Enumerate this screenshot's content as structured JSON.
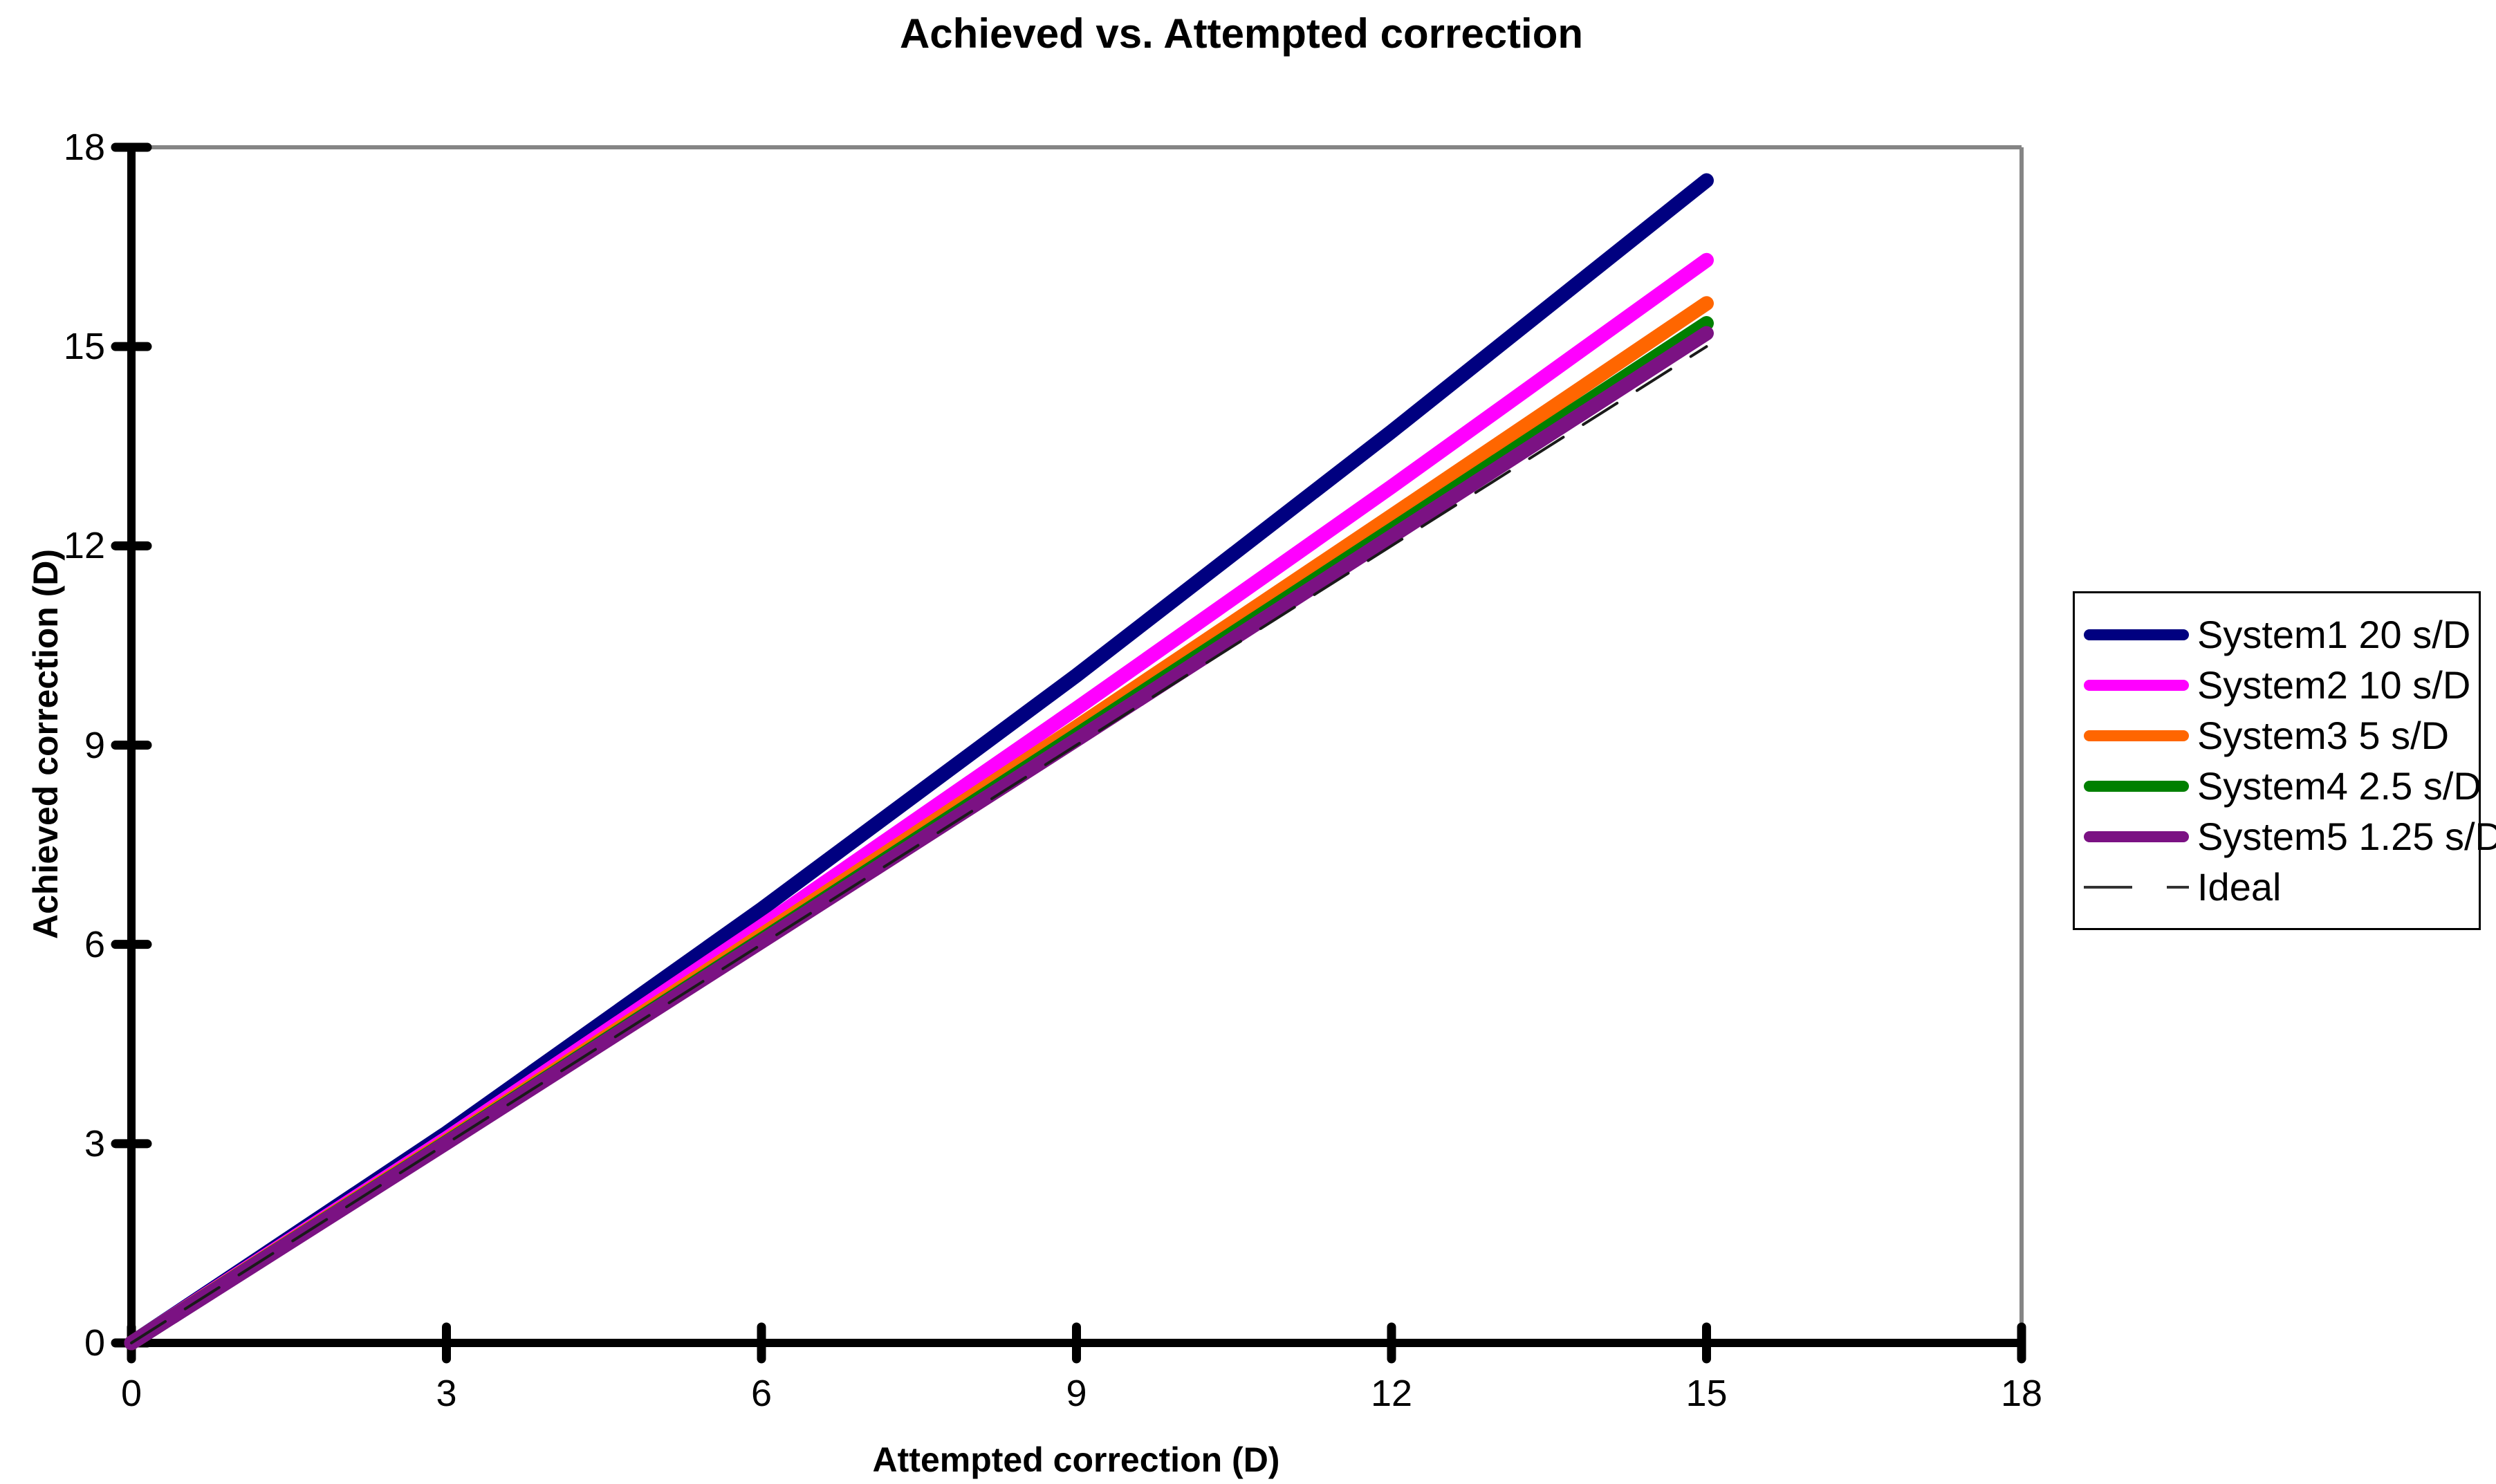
{
  "chart_data": {
    "type": "line",
    "title": "Achieved vs. Attempted correction",
    "xlabel": "Attempted correction (D)",
    "ylabel": "Achieved correction (D)",
    "xlim": [
      0,
      18
    ],
    "ylim": [
      0,
      18
    ],
    "x_ticks": [
      0,
      3,
      6,
      9,
      12,
      15,
      18
    ],
    "y_ticks": [
      0,
      3,
      6,
      9,
      12,
      15,
      18
    ],
    "grid": false,
    "legend_position": "right",
    "x": [
      0,
      3,
      6,
      9,
      12,
      15
    ],
    "series": [
      {
        "name": "System1 20 s/D",
        "color": "#000080",
        "stroke_width": 21,
        "dash": "",
        "values": [
          0,
          3.16,
          6.53,
          10.05,
          13.72,
          17.5
        ]
      },
      {
        "name": "System2 10 s/D",
        "color": "#FF00FF",
        "stroke_width": 21,
        "dash": "",
        "values": [
          0,
          3.08,
          6.27,
          9.55,
          12.89,
          16.3
        ]
      },
      {
        "name": "System3 5 s/D",
        "color": "#FF6600",
        "stroke_width": 21,
        "dash": "",
        "values": [
          0,
          3.04,
          6.14,
          9.27,
          12.45,
          15.65
        ]
      },
      {
        "name": "System4 2.5 s/D",
        "color": "#008000",
        "stroke_width": 21,
        "dash": "",
        "values": [
          0,
          3.02,
          6.07,
          9.15,
          12.24,
          15.35
        ]
      },
      {
        "name": "System5 1.25 s/D",
        "color": "#7B1283",
        "stroke_width": 21,
        "dash": "",
        "values": [
          0,
          3.01,
          6.04,
          9.08,
          12.14,
          15.2
        ]
      },
      {
        "name": "Ideal",
        "color": "#1A1A1A",
        "stroke_width": 4,
        "dash": "58 34",
        "values": [
          0,
          3,
          6,
          9,
          12,
          15
        ]
      }
    ],
    "colors": {
      "axis": "#000000",
      "plot_border": "#858585",
      "background": "#FFFFFF"
    }
  }
}
